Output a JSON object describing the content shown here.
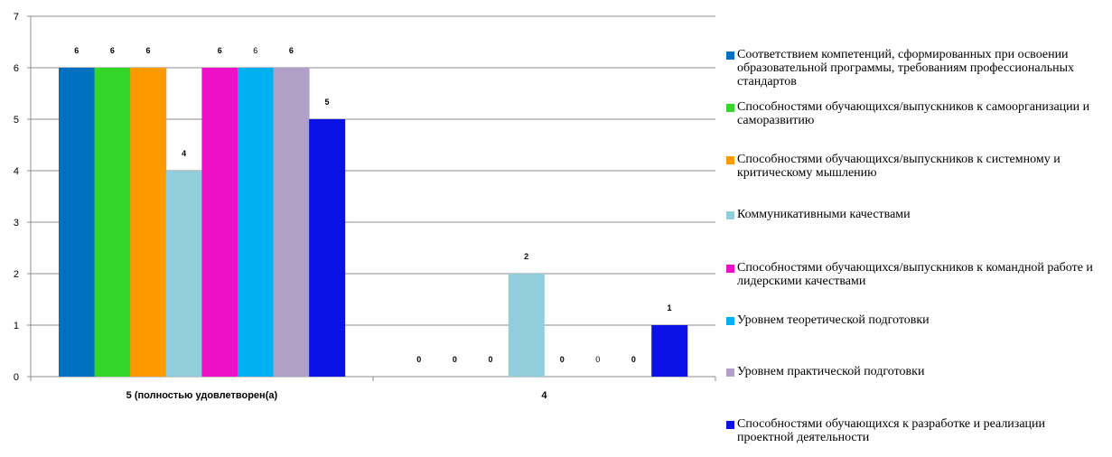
{
  "chart_data": {
    "type": "bar",
    "categories": [
      "5 (полностью удовлетворен(а)",
      "4"
    ],
    "ylim": [
      0,
      7
    ],
    "yticks": [
      0,
      1,
      2,
      3,
      4,
      5,
      6,
      7
    ],
    "grid": true,
    "legend_position": "right",
    "series": [
      {
        "name": "Соответствием компетенций, сформированных при освоении образовательной программы, требованиям профессиональных стандартов",
        "color": "#0070C0",
        "values": [
          6,
          0
        ],
        "label_bold": true
      },
      {
        "name": "Способностями обучающихся/выпускников к самоорганизации и саморазвитию",
        "color": "#33D629",
        "values": [
          6,
          0
        ],
        "label_bold": true
      },
      {
        "name": "Способностями обучающихся/выпускников к системному и критическому мышлению",
        "color": "#FF9900",
        "values": [
          6,
          0
        ],
        "label_bold": true
      },
      {
        "name": "Коммуникативными качествами",
        "color": "#92CDDC",
        "values": [
          4,
          2
        ],
        "label_bold": true
      },
      {
        "name": "Способностями обучающихся/выпускников к командной работе и лидерскими качествами",
        "color": "#EE10C6",
        "values": [
          6,
          0
        ],
        "label_bold": true
      },
      {
        "name": "Уровнем теоретической подготовки",
        "color": "#00B0F0",
        "values": [
          6,
          0
        ],
        "label_bold": false
      },
      {
        "name": "Уровнем практической подготовки",
        "color": "#B1A0C7",
        "values": [
          6,
          0
        ],
        "label_bold": true
      },
      {
        "name": "Способностями обучающихся к разработке и реализации проектной деятельности",
        "color": "#0A12E6",
        "values": [
          5,
          1
        ],
        "label_bold": true
      }
    ]
  }
}
